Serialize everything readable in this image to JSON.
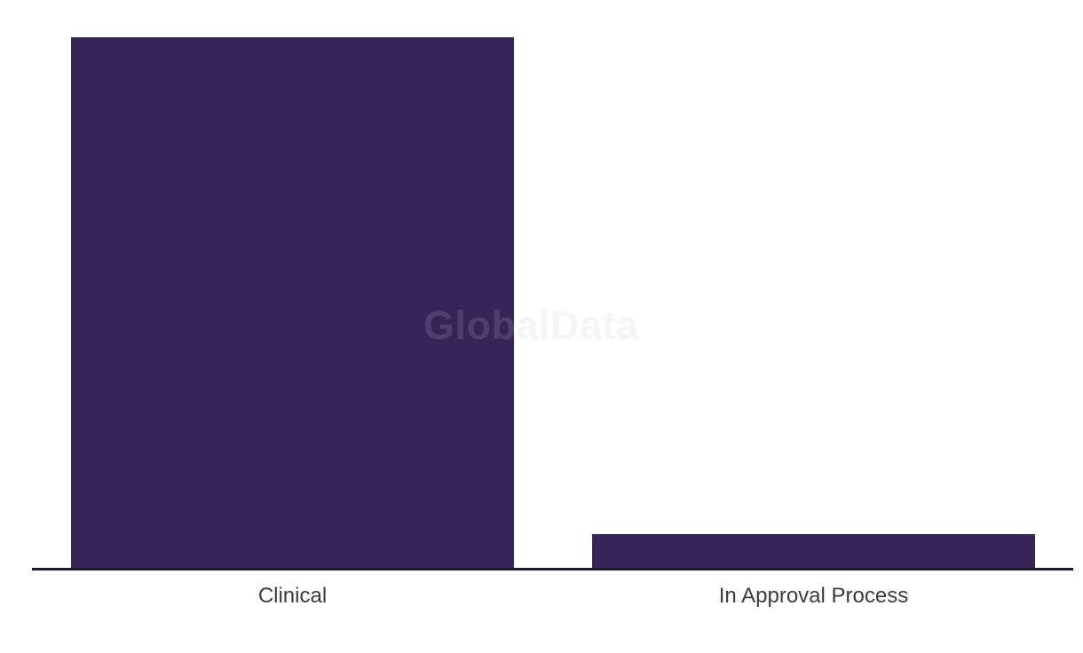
{
  "watermark": {
    "text": "GlobalData"
  },
  "colors": {
    "bar": "#372557",
    "axis": "#191930",
    "label": "#3c3c3c",
    "watermark_back": "#f4f4f6",
    "watermark_front": "rgba(255,255,255,0.12)"
  },
  "chart_data": {
    "type": "bar",
    "orientation": "vertical",
    "categories": [
      "Clinical",
      "In Approval Process"
    ],
    "values": [
      599,
      39
    ],
    "value_scale": "relative units (no y-axis or value labels shown in image)",
    "title": "",
    "xlabel": "",
    "ylabel": "",
    "ylim": [
      0,
      600
    ],
    "grid": false,
    "legend": false,
    "bar_color": "#372557",
    "watermark": "GlobalData"
  }
}
